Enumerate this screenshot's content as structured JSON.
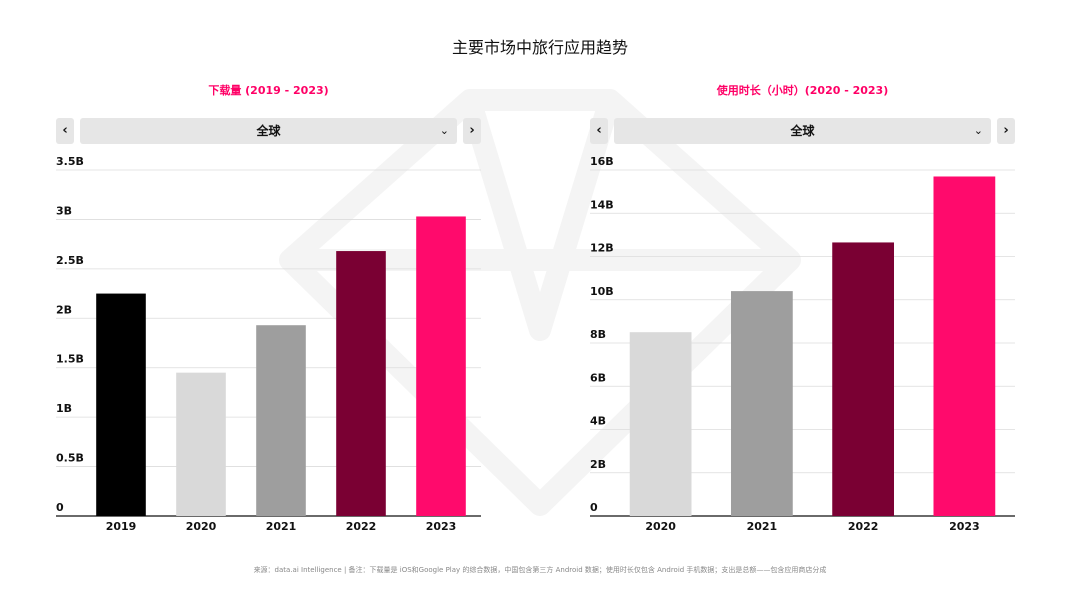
{
  "page": {
    "title": "主要市场中旅行应用趋势",
    "footnote": "来源：data.ai Intelligence | 备注：下载量是 iOS和Google Play 的综合数据，中国包含第三方 Android 数据；使用时长仅包含 Android 手机数据；支出是总额——包含应用商店分成"
  },
  "colors": {
    "accent": "#ff0066",
    "bar_black": "#000000",
    "bar_light": "#d9d9d9",
    "bar_gray": "#9e9e9e",
    "bar_maroon": "#7a0033",
    "bar_pink": "#ff0a6c"
  },
  "panels": [
    {
      "title": "下载量 (2019 - 2023)",
      "selector": {
        "value": "全球",
        "prev_icon": "‹",
        "next_icon": "›",
        "chevron_icon": "⌄"
      }
    },
    {
      "title": "使用时长（小时）(2020 - 2023)",
      "selector": {
        "value": "全球",
        "prev_icon": "‹",
        "next_icon": "›",
        "chevron_icon": "⌄"
      }
    }
  ],
  "chart_data": [
    {
      "type": "bar",
      "title": "下载量 (2019 - 2023)",
      "categories": [
        "2019",
        "2020",
        "2021",
        "2022",
        "2023"
      ],
      "values": [
        2.25,
        1.45,
        1.93,
        2.68,
        3.03
      ],
      "unit": "B",
      "yticks": [
        "0",
        "0.5B",
        "1B",
        "1.5B",
        "2B",
        "2.5B",
        "3B",
        "3.5B"
      ],
      "ylim": [
        0,
        3.5
      ],
      "grid": true,
      "bar_colors": [
        "#000000",
        "#d9d9d9",
        "#9e9e9e",
        "#7a0033",
        "#ff0a6c"
      ]
    },
    {
      "type": "bar",
      "title": "使用时长（小时）(2020 - 2023)",
      "categories": [
        "2020",
        "2021",
        "2022",
        "2023"
      ],
      "values": [
        8.5,
        10.4,
        12.65,
        15.7
      ],
      "unit": "B",
      "yticks": [
        "0",
        "2B",
        "4B",
        "6B",
        "8B",
        "10B",
        "12B",
        "14B",
        "16B"
      ],
      "ylim": [
        0,
        16
      ],
      "grid": true,
      "bar_colors": [
        "#d9d9d9",
        "#9e9e9e",
        "#7a0033",
        "#ff0a6c"
      ]
    }
  ]
}
